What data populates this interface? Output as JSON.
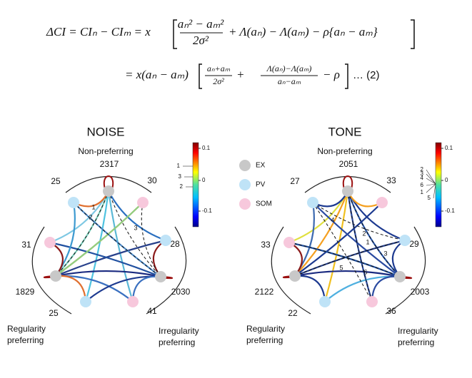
{
  "equations": {
    "line1": {
      "lhs": "ΔCI = CIₙ − CIₘ = x",
      "num": "aₙ² − aₘ²",
      "den": "2σ²",
      "rest": "+ Λ(aₙ) − Λ(aₘ) − ρ{aₙ − aₘ}"
    },
    "line2": {
      "lhs": "= x(aₙ − aₘ)",
      "num1": "aₙ+aₘ",
      "den1": "2σ²",
      "plus": "+",
      "num2": "Λ(aₙ)−Λ(aₘ)",
      "den2": "aₙ−aₘ",
      "rest": "− ρ",
      "tag": "… (2)"
    }
  },
  "legend": [
    "EX",
    "PV",
    "SOM"
  ],
  "panels": [
    {
      "title": "NOISE",
      "top_label": "Non-preferring",
      "left_label": [
        "Regularity",
        "preferring"
      ],
      "right_label": [
        "Irregularity",
        "preferring"
      ],
      "counts": [
        2317,
        30,
        28,
        2030,
        41,
        25,
        1829,
        31,
        25
      ],
      "colorbar_ticks": [
        0.1,
        0,
        -0.1
      ],
      "colorbar_markers": [
        1,
        3,
        2
      ],
      "edge_labels": [
        1,
        2,
        3
      ]
    },
    {
      "title": "TONE",
      "top_label": "Non-preferring",
      "left_label": [
        "Regularity",
        "preferring"
      ],
      "right_label": [
        "Irregularity",
        "preferring"
      ],
      "counts": [
        2051,
        33,
        29,
        2003,
        36,
        22,
        2122,
        33,
        27
      ],
      "colorbar_ticks": [
        0.1,
        0,
        -0.1
      ],
      "colorbar_markers": [
        2,
        3,
        4,
        6,
        1,
        5
      ],
      "edge_labels": [
        4,
        2,
        1,
        3,
        5,
        6
      ]
    }
  ]
}
